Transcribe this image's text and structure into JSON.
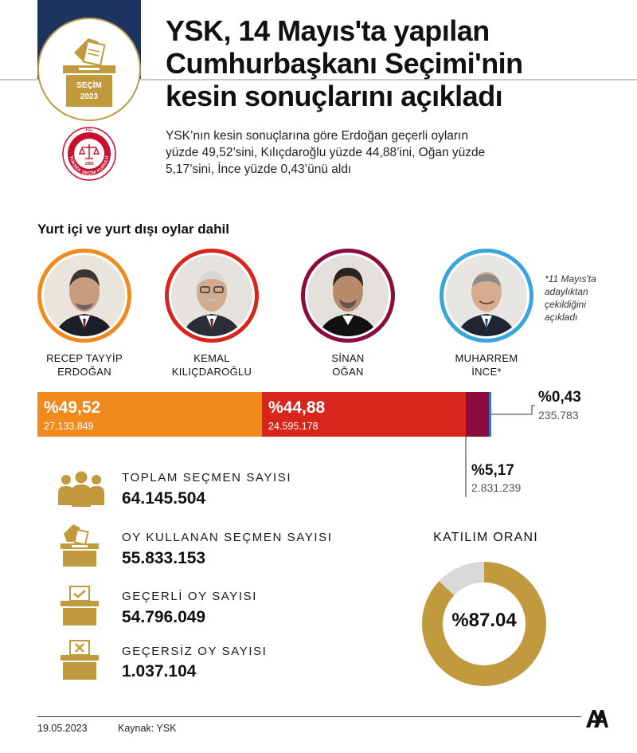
{
  "header": {
    "badge_text": "SEÇİM",
    "badge_year": "2023",
    "seal_top": "T.C.",
    "seal_year": "1950",
    "seal_ring": "YÜKSEK SEÇİM KURULU",
    "title_lines": [
      "YSK, 14 Mayıs'ta yapılan",
      "Cumhurbaşkanı Seçimi'nin",
      "kesin sonuçlarını açıkladı"
    ],
    "summary_lines": [
      "YSK’nın kesin sonuçlarına göre Erdoğan geçerli oyların",
      "yüzde 49,52’sini, Kılıçdaroğlu yüzde 44,88’ini, Oğan yüzde",
      "5,17’sini, İnce yüzde 0,43’ünü aldı"
    ]
  },
  "section_title": "Yurt içi ve yurt dışı oylar dahil",
  "candidates": [
    {
      "name_line1": "RECEP TAYYİP",
      "name_line2": "ERDOĞAN",
      "ring_color": "#f08a1c"
    },
    {
      "name_line1": "KEMAL",
      "name_line2": "KILIÇDAROĞLU",
      "ring_color": "#d9261c"
    },
    {
      "name_line1": "SİNAN",
      "name_line2": "OĞAN",
      "ring_color": "#8c0a3c"
    },
    {
      "name_line1": "MUHARREM",
      "name_line2": "İNCE*",
      "ring_color": "#3aa5dc"
    }
  ],
  "note_lines": [
    "*11 Mayıs'ta",
    "adaylıktan",
    "çekildiğini",
    "açıkladı"
  ],
  "chart_data": {
    "type": "bar",
    "orientation": "horizontal-stacked",
    "categories": [
      "RECEP TAYYİP ERDOĞAN",
      "KEMAL KILIÇDAROĞLU",
      "SİNAN OĞAN",
      "MUHARREM İNCE*"
    ],
    "values": [
      49.52,
      44.88,
      5.17,
      0.43
    ],
    "vote_counts": [
      27133849,
      24595178,
      2831239,
      235783
    ],
    "labels": [
      "%49,52",
      "%44,88",
      "%5,17",
      "%0,43"
    ],
    "vote_labels": [
      "27.133.849",
      "24.595.178",
      "2.831.239",
      "235.783"
    ],
    "colors": [
      "#f08a1c",
      "#d9261c",
      "#8c0a3c",
      "#3a72c4"
    ]
  },
  "stats": [
    {
      "label": "TOPLAM SEÇMEN SAYISI",
      "value": "64.145.504",
      "icon": "people-icon"
    },
    {
      "label": "OY KULLANAN SEÇMEN SAYISI",
      "value": "55.833.153",
      "icon": "ballot-box-icon"
    },
    {
      "label": "GEÇERLİ OY SAYISI",
      "value": "54.796.049",
      "icon": "valid-vote-box-icon"
    },
    {
      "label": "GEÇERSİZ OY SAYISI",
      "value": "1.037.104",
      "icon": "invalid-vote-box-icon"
    }
  ],
  "turnout": {
    "title": "KATILIM ORANI",
    "label": "%87.04",
    "value": 87.04,
    "color": "#c09a3c",
    "rest_color": "#d9d9d9"
  },
  "footer": {
    "date": "19.05.2023",
    "source": "Kaynak: YSK",
    "logo": "AA"
  },
  "colors": {
    "gold": "#c09a3c",
    "navy": "#1d3461"
  }
}
